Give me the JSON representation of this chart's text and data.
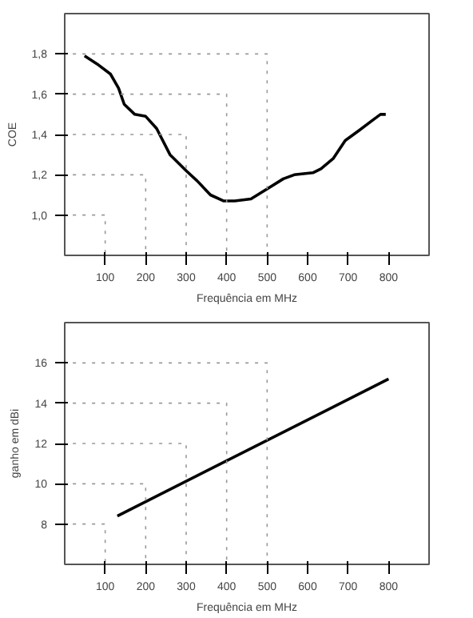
{
  "chart_data": [
    {
      "type": "line",
      "xlabel": "Frequência em MHz",
      "ylabel": "COE",
      "xlim": [
        0,
        900
      ],
      "ylim": [
        0.8,
        2.0
      ],
      "xticks": [
        100,
        200,
        300,
        400,
        500,
        600,
        700,
        800
      ],
      "yticks": [
        {
          "value": 1.0,
          "label": "1,0"
        },
        {
          "value": 1.2,
          "label": "1,2"
        },
        {
          "value": 1.4,
          "label": "1,4"
        },
        {
          "value": 1.6,
          "label": "1,6"
        },
        {
          "value": 1.8,
          "label": "1,8"
        }
      ],
      "line_style": "solid",
      "series": [
        {
          "color": "#000000",
          "x": [
            49,
            80,
            113,
            133,
            147,
            173,
            200,
            227,
            260,
            300,
            327,
            360,
            393,
            420,
            460,
            500,
            540,
            567,
            613,
            633,
            663,
            693,
            727,
            760,
            780,
            793
          ],
          "values": [
            1.79,
            1.75,
            1.7,
            1.63,
            1.55,
            1.5,
            1.49,
            1.43,
            1.3,
            1.22,
            1.17,
            1.1,
            1.07,
            1.07,
            1.08,
            1.13,
            1.18,
            1.2,
            1.21,
            1.23,
            1.28,
            1.37,
            1.42,
            1.47,
            1.5,
            1.5
          ]
        },
        {
          "color": "#999999",
          "line_style": "dotted",
          "x": [
            20,
            100,
            100
          ],
          "values": [
            1.0,
            1.0,
            0.8
          ]
        },
        {
          "color": "#999999",
          "line_style": "dotted",
          "x": [
            20,
            200,
            200
          ],
          "values": [
            1.2,
            1.2,
            0.8
          ]
        },
        {
          "color": "#999999",
          "line_style": "dotted",
          "x": [
            20,
            300,
            300
          ],
          "values": [
            1.4,
            1.4,
            0.8
          ]
        },
        {
          "color": "#999999",
          "line_style": "dotted",
          "x": [
            20,
            400,
            400
          ],
          "values": [
            1.6,
            1.6,
            0.8
          ]
        },
        {
          "color": "#999999",
          "line_style": "dotted",
          "x": [
            20,
            500,
            500
          ],
          "values": [
            1.8,
            1.8,
            0.8
          ]
        }
      ]
    },
    {
      "type": "line",
      "xlabel": "Frequência em MHz",
      "ylabel": "ganho em dBi",
      "xlim": [
        0,
        900
      ],
      "ylim": [
        6,
        18
      ],
      "xticks": [
        100,
        200,
        300,
        400,
        500,
        600,
        700,
        800
      ],
      "yticks": [
        8,
        10,
        12,
        14,
        16
      ],
      "line_style": "solid",
      "series": [
        {
          "color": "#000000",
          "x": [
            130,
            800
          ],
          "values": [
            8.4,
            15.2
          ]
        },
        {
          "color": "#999999",
          "line_style": "dotted",
          "x": [
            20,
            100,
            100
          ],
          "values": [
            8,
            8,
            6
          ]
        },
        {
          "color": "#999999",
          "line_style": "dotted",
          "x": [
            20,
            200,
            200
          ],
          "values": [
            10,
            10,
            6
          ]
        },
        {
          "color": "#999999",
          "line_style": "dotted",
          "x": [
            20,
            300,
            300
          ],
          "values": [
            12,
            12,
            6
          ]
        },
        {
          "color": "#999999",
          "line_style": "dotted",
          "x": [
            20,
            400,
            400
          ],
          "values": [
            14,
            14,
            6
          ]
        },
        {
          "color": "#999999",
          "line_style": "dotted",
          "x": [
            20,
            500,
            500
          ],
          "values": [
            16,
            16,
            6
          ]
        }
      ]
    }
  ]
}
